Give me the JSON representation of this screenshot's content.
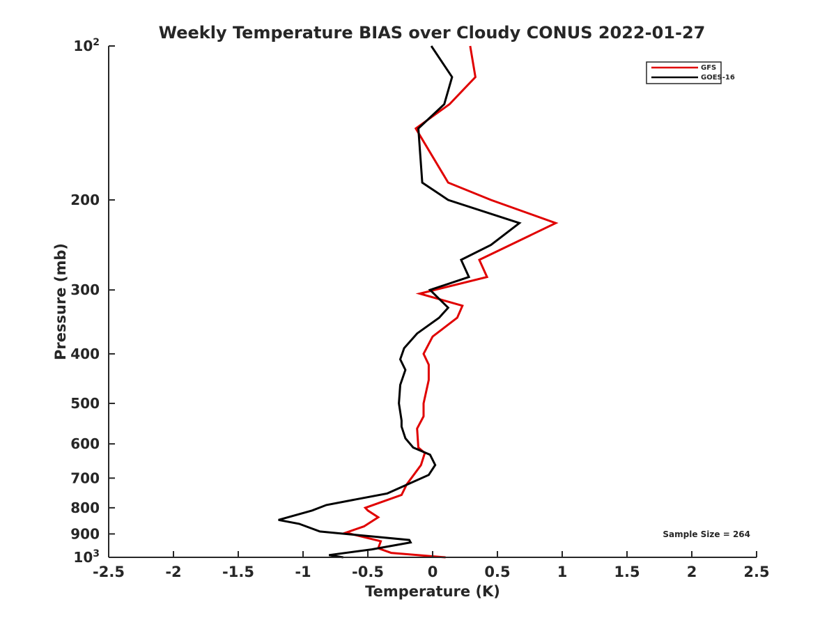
{
  "chart_data": {
    "type": "line",
    "title": "Weekly Temperature BIAS over Cloudy CONUS 2022-01-27",
    "xlabel": "Temperature (K)",
    "ylabel": "Pressure (mb)",
    "xlim": [
      -2.5,
      2.5
    ],
    "ylim": [
      100,
      1000
    ],
    "y_scale": "log",
    "y_reversed": true,
    "grid": false,
    "legend_position": "top-right",
    "x_ticks": [
      -2.5,
      -2,
      -1.5,
      -1,
      -0.5,
      0,
      0.5,
      1,
      1.5,
      2,
      2.5
    ],
    "x_tick_labels": [
      "-2.5",
      "-2",
      "-1.5",
      "-1",
      "-0.5",
      "0",
      "0.5",
      "1",
      "1.5",
      "2",
      "2.5"
    ],
    "y_ticks": [
      {
        "value": 100,
        "base": "10",
        "exp": "2"
      },
      {
        "value": 200,
        "label": "200"
      },
      {
        "value": 300,
        "label": "300"
      },
      {
        "value": 400,
        "label": "400"
      },
      {
        "value": 500,
        "label": "500"
      },
      {
        "value": 600,
        "label": "600"
      },
      {
        "value": 700,
        "label": "700"
      },
      {
        "value": 800,
        "label": "800"
      },
      {
        "value": 900,
        "label": "900"
      },
      {
        "value": 1000,
        "base": "10",
        "exp": "3"
      }
    ],
    "annotation": "Sample Size = 264",
    "series": [
      {
        "name": "GFS",
        "color": "#e00000",
        "points": [
          [
            0.29,
            100
          ],
          [
            0.33,
            115
          ],
          [
            0.13,
            130
          ],
          [
            -0.13,
            145
          ],
          [
            0.12,
            185
          ],
          [
            0.45,
            200
          ],
          [
            0.95,
            222
          ],
          [
            0.36,
            262
          ],
          [
            0.42,
            283
          ],
          [
            -0.1,
            305
          ],
          [
            0.23,
            322
          ],
          [
            0.19,
            340
          ],
          [
            0.0,
            370
          ],
          [
            -0.07,
            400
          ],
          [
            -0.03,
            420
          ],
          [
            -0.03,
            450
          ],
          [
            -0.07,
            500
          ],
          [
            -0.07,
            530
          ],
          [
            -0.12,
            560
          ],
          [
            -0.11,
            610
          ],
          [
            -0.06,
            625
          ],
          [
            -0.09,
            660
          ],
          [
            -0.2,
            720
          ],
          [
            -0.24,
            755
          ],
          [
            -0.52,
            800
          ],
          [
            -0.5,
            810
          ],
          [
            -0.42,
            835
          ],
          [
            -0.53,
            870
          ],
          [
            -0.67,
            895
          ],
          [
            -0.4,
            930
          ],
          [
            -0.42,
            960
          ],
          [
            -0.32,
            980
          ],
          [
            0.1,
            1000
          ]
        ]
      },
      {
        "name": "GOES-16",
        "color": "#000000",
        "points": [
          [
            -0.01,
            100
          ],
          [
            0.15,
            115
          ],
          [
            0.09,
            130
          ],
          [
            -0.11,
            145
          ],
          [
            -0.08,
            185
          ],
          [
            0.12,
            200
          ],
          [
            0.67,
            222
          ],
          [
            0.45,
            245
          ],
          [
            0.22,
            262
          ],
          [
            0.28,
            283
          ],
          [
            -0.02,
            300
          ],
          [
            0.12,
            325
          ],
          [
            0.05,
            340
          ],
          [
            -0.12,
            365
          ],
          [
            -0.22,
            390
          ],
          [
            -0.25,
            410
          ],
          [
            -0.21,
            430
          ],
          [
            -0.25,
            460
          ],
          [
            -0.26,
            500
          ],
          [
            -0.24,
            540
          ],
          [
            -0.24,
            555
          ],
          [
            -0.21,
            585
          ],
          [
            -0.15,
            610
          ],
          [
            -0.02,
            630
          ],
          [
            0.02,
            660
          ],
          [
            -0.03,
            690
          ],
          [
            -0.35,
            750
          ],
          [
            -0.82,
            790
          ],
          [
            -0.93,
            810
          ],
          [
            -1.19,
            845
          ],
          [
            -1.03,
            860
          ],
          [
            -0.87,
            890
          ],
          [
            -0.18,
            925
          ],
          [
            -0.17,
            935
          ],
          [
            -0.47,
            965
          ],
          [
            -0.8,
            990
          ],
          [
            -0.69,
            1000
          ]
        ]
      }
    ]
  }
}
